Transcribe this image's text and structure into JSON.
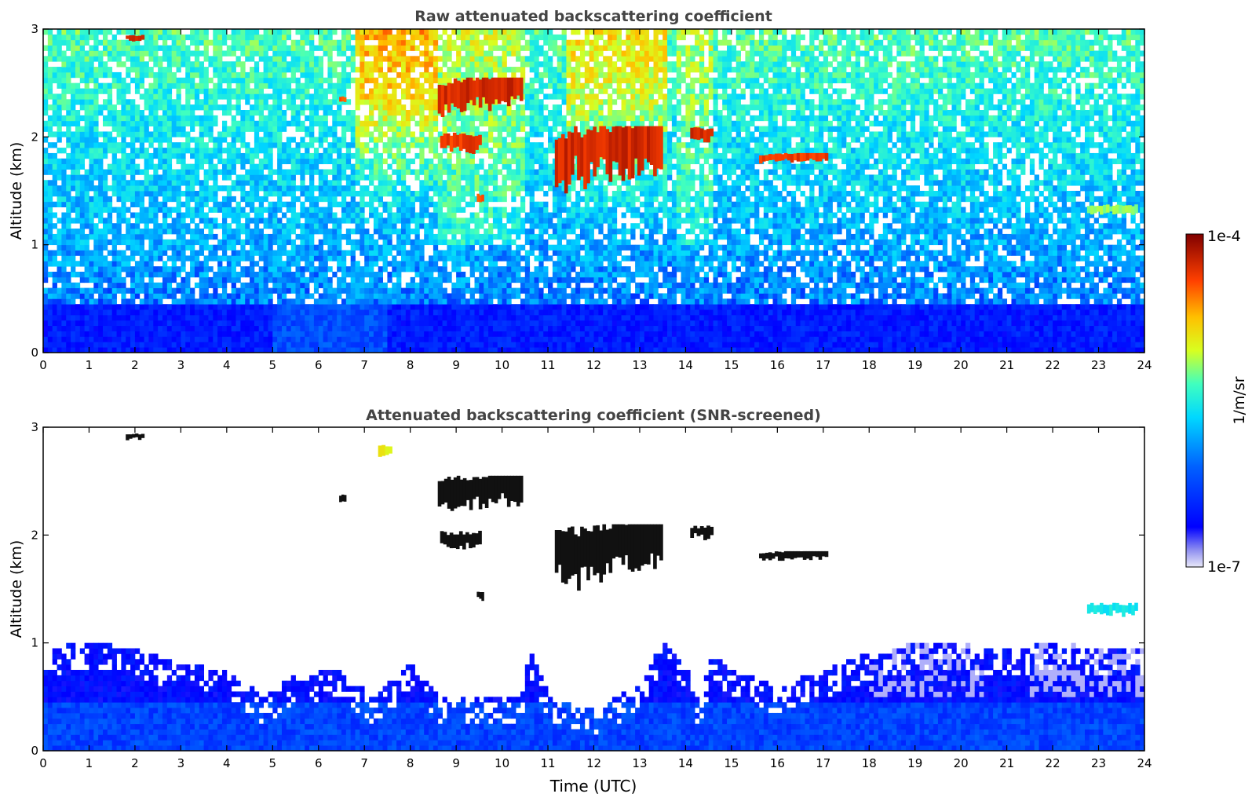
{
  "chart_data": [
    {
      "type": "heatmap",
      "title": "Raw attenuated backscattering coefficient",
      "xlabel": "",
      "ylabel": "Altitude (km)",
      "xlim": [
        0,
        24
      ],
      "ylim": [
        0,
        3
      ],
      "xticks": [
        "0",
        "1",
        "2",
        "3",
        "4",
        "5",
        "6",
        "7",
        "8",
        "9",
        "10",
        "11",
        "12",
        "13",
        "14",
        "15",
        "16",
        "17",
        "18",
        "19",
        "20",
        "21",
        "22",
        "23",
        "24"
      ],
      "yticks": [
        "0",
        "1",
        "2",
        "3"
      ],
      "grid": false,
      "noise": "dense speckle over whole panel; higher (green/yellow) around 7-8.5 h and 11.5-14.5 h aloft",
      "features": [
        {
          "name": "boundary-layer",
          "x": [
            0,
            24
          ],
          "y": [
            0,
            0.5
          ],
          "level": 0.12
        },
        {
          "name": "cloud",
          "x": [
            1.8,
            2.2
          ],
          "y": [
            2.88,
            2.95
          ],
          "level": 0.95
        },
        {
          "name": "cloud",
          "x": [
            6.45,
            6.6
          ],
          "y": [
            2.3,
            2.38
          ],
          "level": 0.9
        },
        {
          "name": "cloud",
          "x": [
            8.6,
            10.45
          ],
          "y": [
            2.2,
            2.55
          ],
          "level": 0.95
        },
        {
          "name": "cloud",
          "x": [
            8.65,
            9.55
          ],
          "y": [
            1.85,
            2.05
          ],
          "level": 0.92
        },
        {
          "name": "cloud",
          "x": [
            9.45,
            9.6
          ],
          "y": [
            1.38,
            1.48
          ],
          "level": 0.9
        },
        {
          "name": "cloud",
          "x": [
            11.15,
            13.5
          ],
          "y": [
            1.5,
            2.1
          ],
          "level": 0.95
        },
        {
          "name": "cloud",
          "x": [
            14.1,
            14.6
          ],
          "y": [
            1.95,
            2.1
          ],
          "level": 0.95
        },
        {
          "name": "cloud",
          "x": [
            15.6,
            17.1
          ],
          "y": [
            1.75,
            1.85
          ],
          "level": 0.92
        },
        {
          "name": "aerosol-layer",
          "x": [
            22.75,
            23.85
          ],
          "y": [
            1.28,
            1.38
          ],
          "level": 0.6
        }
      ]
    },
    {
      "type": "heatmap",
      "title": "Attenuated backscattering coefficient (SNR-screened)",
      "xlabel": "Time (UTC)",
      "ylabel": "Altitude (km)",
      "xlim": [
        0,
        24
      ],
      "ylim": [
        0,
        3
      ],
      "xticks": [
        "0",
        "1",
        "2",
        "3",
        "4",
        "5",
        "6",
        "7",
        "8",
        "9",
        "10",
        "11",
        "12",
        "13",
        "14",
        "15",
        "16",
        "17",
        "18",
        "19",
        "20",
        "21",
        "22",
        "23",
        "24"
      ],
      "yticks": [
        "0",
        "1",
        "2",
        "3"
      ],
      "grid": false,
      "screened_boundary_layer_top_km": [
        [
          0,
          0.95
        ],
        [
          1,
          1.0
        ],
        [
          2,
          0.95
        ],
        [
          3,
          0.8
        ],
        [
          4,
          0.75
        ],
        [
          4.8,
          0.5
        ],
        [
          5.5,
          0.7
        ],
        [
          6.5,
          0.75
        ],
        [
          7.2,
          0.5
        ],
        [
          8.0,
          0.8
        ],
        [
          8.7,
          0.5
        ],
        [
          10.4,
          0.5
        ],
        [
          10.6,
          0.95
        ],
        [
          11.1,
          0.45
        ],
        [
          12.0,
          0.4
        ],
        [
          13.0,
          0.6
        ],
        [
          13.5,
          1.0
        ],
        [
          14.0,
          0.8
        ],
        [
          14.3,
          0.45
        ],
        [
          14.6,
          0.9
        ],
        [
          15.0,
          0.75
        ],
        [
          16.0,
          0.6
        ],
        [
          17.0,
          0.75
        ],
        [
          18.0,
          0.9
        ],
        [
          19.0,
          1.0
        ],
        [
          20.0,
          0.98
        ],
        [
          21.0,
          0.95
        ],
        [
          22.0,
          1.0
        ],
        [
          23.0,
          0.95
        ],
        [
          24.0,
          0.95
        ]
      ],
      "features": [
        {
          "name": "cloud",
          "x": [
            1.8,
            2.2
          ],
          "y": [
            2.88,
            2.95
          ],
          "level": 0.95
        },
        {
          "name": "cloud",
          "x": [
            6.45,
            6.6
          ],
          "y": [
            2.3,
            2.38
          ],
          "level": 0.9
        },
        {
          "name": "cloud",
          "x": [
            7.3,
            7.6
          ],
          "y": [
            2.72,
            2.85
          ],
          "level": 0.7
        },
        {
          "name": "cloud",
          "x": [
            8.6,
            10.45
          ],
          "y": [
            2.2,
            2.55
          ],
          "level": 0.95
        },
        {
          "name": "cloud",
          "x": [
            8.65,
            9.55
          ],
          "y": [
            1.85,
            2.05
          ],
          "level": 0.92
        },
        {
          "name": "cloud",
          "x": [
            9.45,
            9.6
          ],
          "y": [
            1.38,
            1.48
          ],
          "level": 0.9
        },
        {
          "name": "cloud",
          "x": [
            11.15,
            13.5
          ],
          "y": [
            1.5,
            2.1
          ],
          "level": 0.95
        },
        {
          "name": "cloud",
          "x": [
            14.1,
            14.6
          ],
          "y": [
            1.95,
            2.1
          ],
          "level": 0.95
        },
        {
          "name": "cloud",
          "x": [
            15.6,
            17.1
          ],
          "y": [
            1.75,
            1.85
          ],
          "level": 0.92
        },
        {
          "name": "aerosol-layer",
          "x": [
            22.75,
            23.85
          ],
          "y": [
            1.25,
            1.38
          ],
          "level": 0.45
        }
      ]
    }
  ],
  "colorbar": {
    "label": "1/m/sr",
    "max_label": "1e-4",
    "min_label": "1e-7",
    "scale": "log",
    "colormap": "jet",
    "colors": [
      "#e8e8f8",
      "#0000ff",
      "#0080ff",
      "#00d8ff",
      "#40ffbf",
      "#d8ff20",
      "#ffc000",
      "#ff4000",
      "#800000"
    ]
  }
}
